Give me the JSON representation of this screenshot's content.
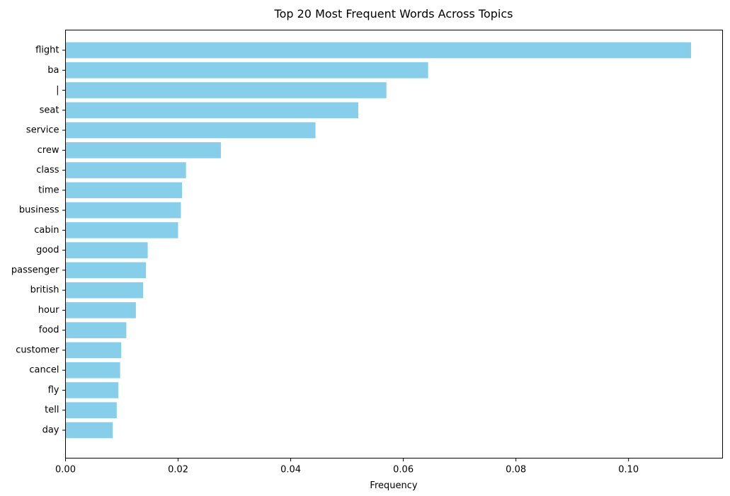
{
  "chart_data": {
    "type": "bar",
    "orientation": "horizontal",
    "title": "Top 20 Most Frequent Words Across Topics",
    "xlabel": "Frequency",
    "ylabel": "",
    "xlim": [
      0,
      0.1167
    ],
    "xticks": [
      0.0,
      0.02,
      0.04,
      0.06,
      0.08,
      0.1
    ],
    "xtick_labels": [
      "0.00",
      "0.02",
      "0.04",
      "0.06",
      "0.08",
      "0.10"
    ],
    "grid": false,
    "bar_color": "#87ceeb",
    "categories": [
      "flight",
      "ba",
      "|",
      "seat",
      "service",
      "crew",
      "class",
      "time",
      "business",
      "cabin",
      "good",
      "passenger",
      "british",
      "hour",
      "food",
      "customer",
      "cancel",
      "fly",
      "tell",
      "day"
    ],
    "values": [
      0.1111,
      0.0644,
      0.057,
      0.052,
      0.0444,
      0.0276,
      0.0214,
      0.0207,
      0.0205,
      0.02,
      0.0146,
      0.0143,
      0.0138,
      0.0125,
      0.0108,
      0.0099,
      0.0097,
      0.0094,
      0.0091,
      0.0084
    ]
  }
}
